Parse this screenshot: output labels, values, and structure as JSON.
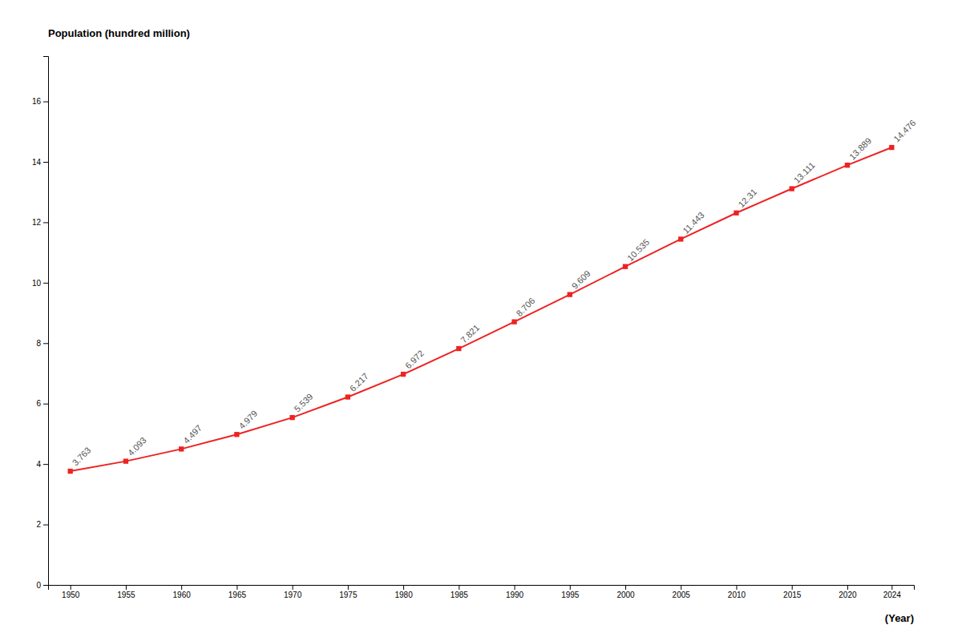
{
  "chart_data": {
    "type": "line",
    "ylabel": "Population (hundred million)",
    "xlabel": "(Year)",
    "x": [
      1950,
      1955,
      1960,
      1965,
      1970,
      1975,
      1980,
      1985,
      1990,
      1995,
      2000,
      2005,
      2010,
      2015,
      2020,
      2024
    ],
    "values": [
      3.763,
      4.093,
      4.497,
      4.979,
      5.539,
      6.217,
      6.972,
      7.821,
      8.706,
      9.609,
      10.535,
      11.443,
      12.31,
      13.111,
      13.889,
      14.476
    ],
    "color": "#ee2222",
    "marker": "square",
    "data_labels": true,
    "grid": false,
    "xlim": [
      1948,
      2026
    ],
    "ylim": [
      0,
      17.5
    ],
    "xticks": [
      1950,
      1955,
      1960,
      1965,
      1970,
      1975,
      1980,
      1985,
      1990,
      1995,
      2000,
      2005,
      2010,
      2015,
      2020,
      2024
    ],
    "yticks": [
      0,
      2,
      4,
      6,
      8,
      10,
      12,
      14,
      16
    ]
  }
}
